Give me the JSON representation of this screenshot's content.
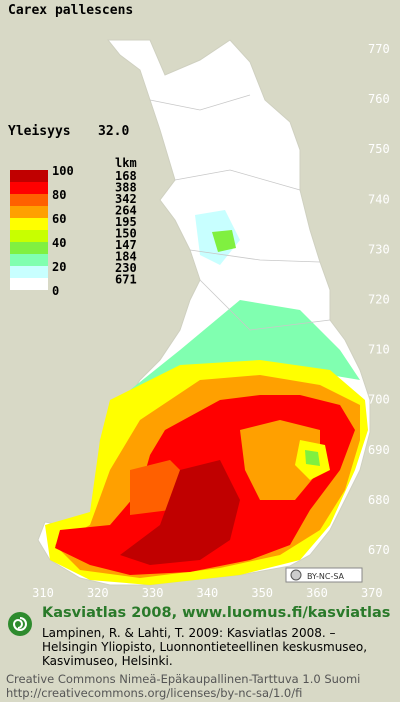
{
  "title": "Carex pallescens",
  "frequency": {
    "label": "Yleisyys",
    "value": "32.0"
  },
  "legend": {
    "scale_labels": [
      "100",
      "80",
      "60",
      "40",
      "20",
      "0"
    ],
    "count_header": "lkm",
    "classes": [
      {
        "color": "#c00000",
        "count": "168"
      },
      {
        "color": "#ff0000",
        "count": "388"
      },
      {
        "color": "#ff6000",
        "count": "342"
      },
      {
        "color": "#ffa000",
        "count": "264"
      },
      {
        "color": "#ffff00",
        "count": "195"
      },
      {
        "color": "#c8ff00",
        "count": "150"
      },
      {
        "color": "#80f040",
        "count": "147"
      },
      {
        "color": "#80ffb0",
        "count": "184"
      },
      {
        "color": "#c8ffff",
        "count": "230"
      },
      {
        "color": "#ffffff",
        "count": "671"
      }
    ]
  },
  "map": {
    "y_labels": [
      "770",
      "760",
      "750",
      "740",
      "730",
      "720",
      "710",
      "700",
      "690",
      "680",
      "670"
    ],
    "x_labels": [
      "310",
      "320",
      "330",
      "340",
      "350",
      "360",
      "370"
    ],
    "license_badge": "BY-NC-SA"
  },
  "footer": {
    "heading": "Kasviatlas 2008, www.luomus.fi/kasviatlas",
    "citation": [
      "Lampinen, R. & Lahti, T. 2009: Kasviatlas 2008. –",
      "Helsingin Yliopisto, Luonnontieteellinen keskusmuseo,",
      "Kasvimuseo, Helsinki."
    ],
    "license": [
      "Creative Commons Nimeä-Epäkaupallinen-Tarttuva 1.0 Suomi",
      "http://creativecommons.org/licenses/by-nc-sa/1.0/fi"
    ]
  }
}
